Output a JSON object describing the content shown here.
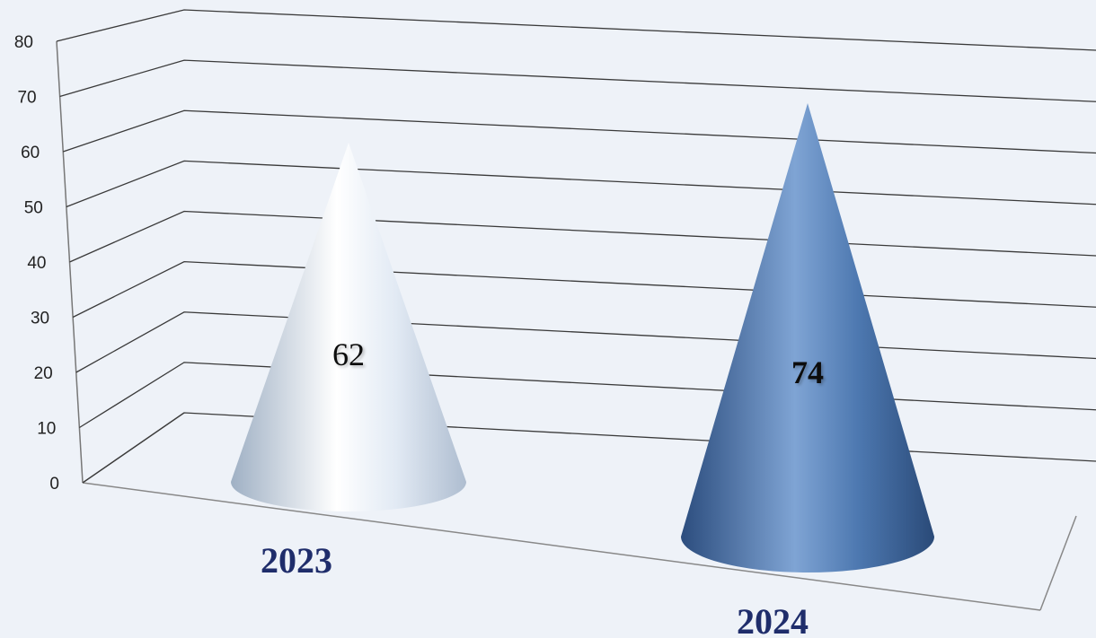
{
  "chart_data": {
    "type": "bar",
    "subtype": "3d-cone",
    "categories": [
      "2023",
      "2024"
    ],
    "values": [
      62,
      74
    ],
    "ylim": [
      0,
      80
    ],
    "yticks": [
      "0",
      "10",
      "20",
      "30",
      "40",
      "50",
      "60",
      "70",
      "80"
    ],
    "grid": true,
    "legend": "none",
    "value_labels": [
      "62",
      "74"
    ],
    "colors": {
      "cone_2023": "#cfdcec",
      "cone_2024": "#3f6aa0",
      "category_label": "#1f2d6b",
      "gridline": "#3a3a3a",
      "background": "#eef2f8"
    }
  }
}
